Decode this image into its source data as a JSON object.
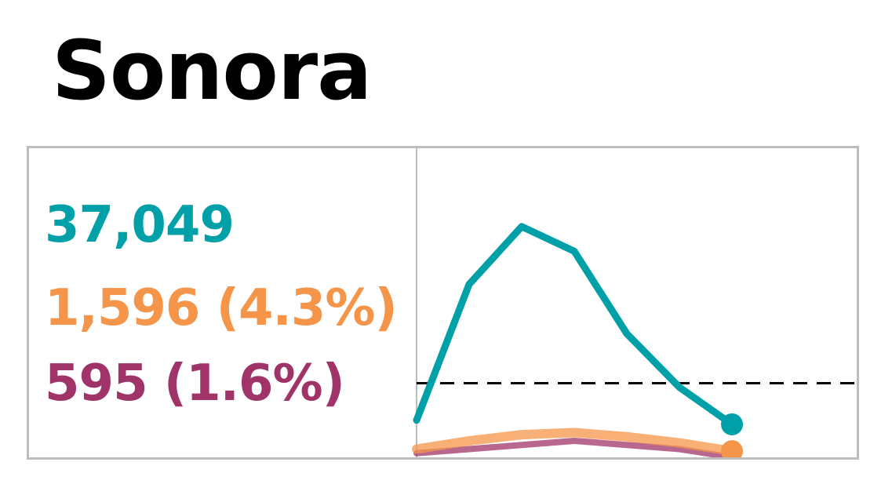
{
  "title": "Sonora",
  "stats": {
    "total": "37,049",
    "series_a": "1,596 (4.3%)",
    "series_b": "595 (1.6%)"
  },
  "colors": {
    "total": "#00a0a8",
    "series_a": "#f5954a",
    "series_b": "#a03468",
    "reference": "#000000",
    "frame": "#bdbdbd"
  },
  "chart_data": {
    "type": "line",
    "x": [
      1,
      2,
      3,
      4,
      5,
      6,
      7
    ],
    "reference_line": 18,
    "ylim": [
      0,
      75
    ],
    "series": [
      {
        "key": "total",
        "values": [
          9,
          42,
          56,
          50,
          30,
          17,
          8
        ]
      },
      {
        "key": "series_a",
        "values": [
          2,
          4,
          5.5,
          6,
          5,
          3.5,
          1.5
        ]
      },
      {
        "key": "series_b",
        "values": [
          1,
          2,
          3,
          4,
          3,
          2,
          0
        ]
      }
    ],
    "grid": false,
    "legend": "none"
  }
}
